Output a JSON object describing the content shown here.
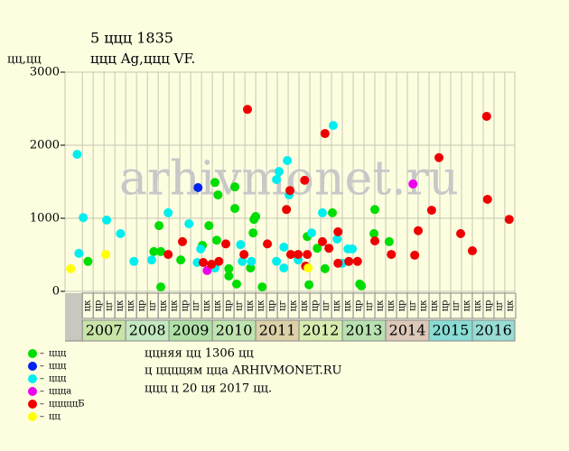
{
  "chart_data": {
    "type": "scatter",
    "title": "5 ццц 1835",
    "subtitle": "ццц Ag,ццц VF.",
    "y_label": "цц,цц",
    "watermark": "arhivmonet.ru",
    "xlim": [
      2006.6,
      2016.98
    ],
    "xticks": [
      2007,
      2008,
      2009,
      2010,
      2011,
      2012,
      2013,
      2014,
      2015,
      2016
    ],
    "year_colors": [
      "#c8e4a8",
      "#c4e8c0",
      "#b0e0a8",
      "#c0e4b0",
      "#dcd0a8",
      "#d8ecb0",
      "#b8e0b0",
      "#dcc8b8",
      "#88dcd4",
      "#98dcd4"
    ],
    "quarter_labels": [
      "цк",
      "цр",
      "цг",
      "цк"
    ],
    "ylim": [
      0,
      3000
    ],
    "yticks": [
      0,
      1000,
      2000,
      3000
    ],
    "grid": true,
    "series": [
      {
        "name": "ццц",
        "color": "#00dd00",
        "x": [
          2007.13,
          2008.65,
          2008.81,
          2008.77,
          2008.81,
          2009.27,
          2009.77,
          2009.92,
          2010.06,
          2010.13,
          2010.1,
          2010.38,
          2010.38,
          2010.52,
          2010.52,
          2010.56,
          2010.88,
          2010.94,
          2010.96,
          2011.0,
          2011.15,
          2012.19,
          2012.23,
          2012.42,
          2012.6,
          2012.77,
          2013.4,
          2013.44,
          2013.73,
          2013.75,
          2014.08
        ],
        "values": [
          410,
          545,
          545,
          900,
          60,
          430,
          630,
          900,
          1490,
          1320,
          700,
          310,
          210,
          1430,
          1135,
          100,
          320,
          800,
          985,
          1025,
          60,
          750,
          90,
          590,
          310,
          1075,
          100,
          75,
          790,
          1120,
          680
        ]
      },
      {
        "name": "ццц",
        "color": "#0022ee",
        "x": [
          2009.67
        ],
        "values": [
          1420
        ]
      },
      {
        "name": "ццц",
        "color": "#00eeee",
        "x": [
          2006.88,
          2006.92,
          2007.02,
          2007.56,
          2007.88,
          2008.19,
          2008.6,
          2008.98,
          2009.46,
          2009.65,
          2009.73,
          2010.06,
          2010.65,
          2010.69,
          2010.9,
          2011.48,
          2011.48,
          2011.54,
          2011.65,
          2011.65,
          2011.73,
          2011.77,
          2011.98,
          2012.29,
          2012.54,
          2012.79,
          2012.88,
          2013.0,
          2013.13,
          2013.23
        ],
        "values": [
          1875,
          520,
          1010,
          975,
          790,
          410,
          430,
          1075,
          925,
          395,
          580,
          320,
          640,
          410,
          410,
          1530,
          410,
          1640,
          605,
          320,
          1790,
          1320,
          430,
          800,
          1075,
          2270,
          715,
          385,
          580,
          580
        ]
      },
      {
        "name": "цццa",
        "color": "#ee00ee",
        "x": [
          2009.88,
          2014.63
        ],
        "values": [
          285,
          1470
        ]
      },
      {
        "name": "цццццБ",
        "color": "#ee0000",
        "x": [
          2008.98,
          2009.31,
          2009.79,
          2009.98,
          2010.15,
          2010.31,
          2010.73,
          2010.81,
          2011.27,
          2011.71,
          2011.79,
          2011.81,
          2011.98,
          2012.13,
          2012.19,
          2012.15,
          2012.54,
          2012.6,
          2012.69,
          2012.9,
          2012.9,
          2013.15,
          2013.35,
          2013.75,
          2014.13,
          2014.67,
          2014.75,
          2015.06,
          2015.23,
          2015.73,
          2016.0,
          2016.33,
          2016.35,
          2016.85
        ],
        "values": [
          505,
          680,
          395,
          370,
          410,
          650,
          505,
          2490,
          650,
          1120,
          1380,
          505,
          505,
          1520,
          505,
          345,
          680,
          2160,
          590,
          815,
          385,
          410,
          410,
          690,
          505,
          495,
          830,
          1110,
          1830,
          790,
          555,
          2395,
          1260,
          985
        ]
      },
      {
        "name": "цц",
        "color": "#ffff00",
        "x": [
          2006.73,
          2007.54,
          2012.21
        ],
        "values": [
          310,
          505,
          320
        ]
      }
    ],
    "notes": [
      "ццняя цц 1306 цц",
      "ц ццццям цца ARHIVMONET.RU",
      "ццц ц 20 ця 2017 цц."
    ]
  }
}
